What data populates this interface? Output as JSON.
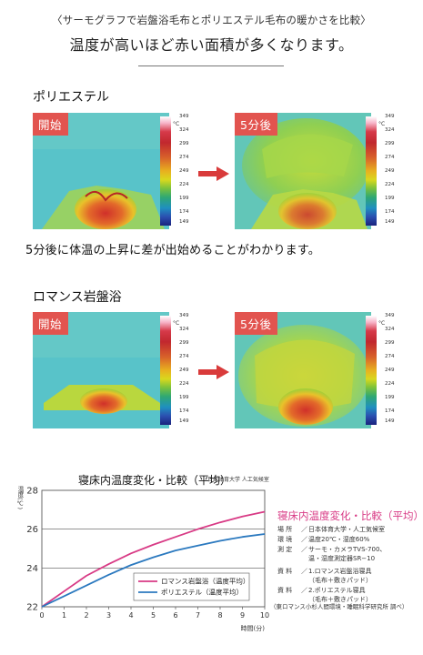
{
  "header": {
    "subtitle": "〈サーモグラフで岩盤浴毛布とポリエステル毛布の暖かさを比較〉",
    "title": "温度が高いほど赤い面積が多くなります。"
  },
  "colors": {
    "badge": "#e2544f",
    "arrow": "#d93b3b",
    "romance_line": "#d83a85",
    "polyester_line": "#2b79bf",
    "side_title": "#d83a85"
  },
  "sections": [
    {
      "title": "ポリエステル",
      "before_label": "開始",
      "after_label": "5分後"
    },
    {
      "title": "ロマンス岩盤浴",
      "before_label": "開始",
      "after_label": "5分後"
    }
  ],
  "scale": {
    "unit": "°C",
    "ticks": [
      "349",
      "324",
      "299",
      "274",
      "249",
      "224",
      "199",
      "174",
      "149"
    ]
  },
  "sentence": "5分後に体温の上昇に差が出始めることがわかります。",
  "chart_data": {
    "type": "line",
    "title": "寝床内温度変化・比較（平均）",
    "credit": "日本体育大学 人工気候室",
    "ylabel": "温度(℃)",
    "xlabel": "時間(分)",
    "x": [
      0,
      1,
      2,
      3,
      4,
      5,
      6,
      7,
      8,
      9,
      10
    ],
    "ylim": [
      22,
      28
    ],
    "xlim": [
      0,
      10
    ],
    "yticks": [
      22,
      24,
      26,
      28
    ],
    "grid": "horizontal",
    "legend_position": "bottom-right",
    "series": [
      {
        "name": "ロマンス岩盤浴（温度平均）",
        "values": [
          22.0,
          22.8,
          23.6,
          24.2,
          24.75,
          25.2,
          25.6,
          26.0,
          26.35,
          26.65,
          26.9
        ]
      },
      {
        "name": "ポリエステル（温度平均）",
        "values": [
          22.0,
          22.55,
          23.1,
          23.65,
          24.15,
          24.55,
          24.9,
          25.15,
          25.4,
          25.6,
          25.75
        ]
      }
    ]
  },
  "info": {
    "title": "寝床内温度変化・比較（平均）",
    "rows": [
      {
        "label": "場 所",
        "value": "日本体育大学・人工気候室",
        "cont": ""
      },
      {
        "label": "環 境",
        "value": "温度20℃・湿度60%",
        "cont": ""
      },
      {
        "label": "測 定",
        "value": "サーモ・カメラTVS-700、",
        "cont": "温・湿度測定器SR−10"
      },
      {
        "label": "資 料",
        "value": "1.ロマンス岩盤浴寝具",
        "cont": "（毛布＋敷きパッド）"
      },
      {
        "label": "資 料",
        "value": "2.ポリエステル寝具",
        "cont": "（毛布＋敷きパッド）"
      }
    ],
    "note": "（東ロマンス小杉人間環境・睡眠科学研究所 調べ）"
  }
}
